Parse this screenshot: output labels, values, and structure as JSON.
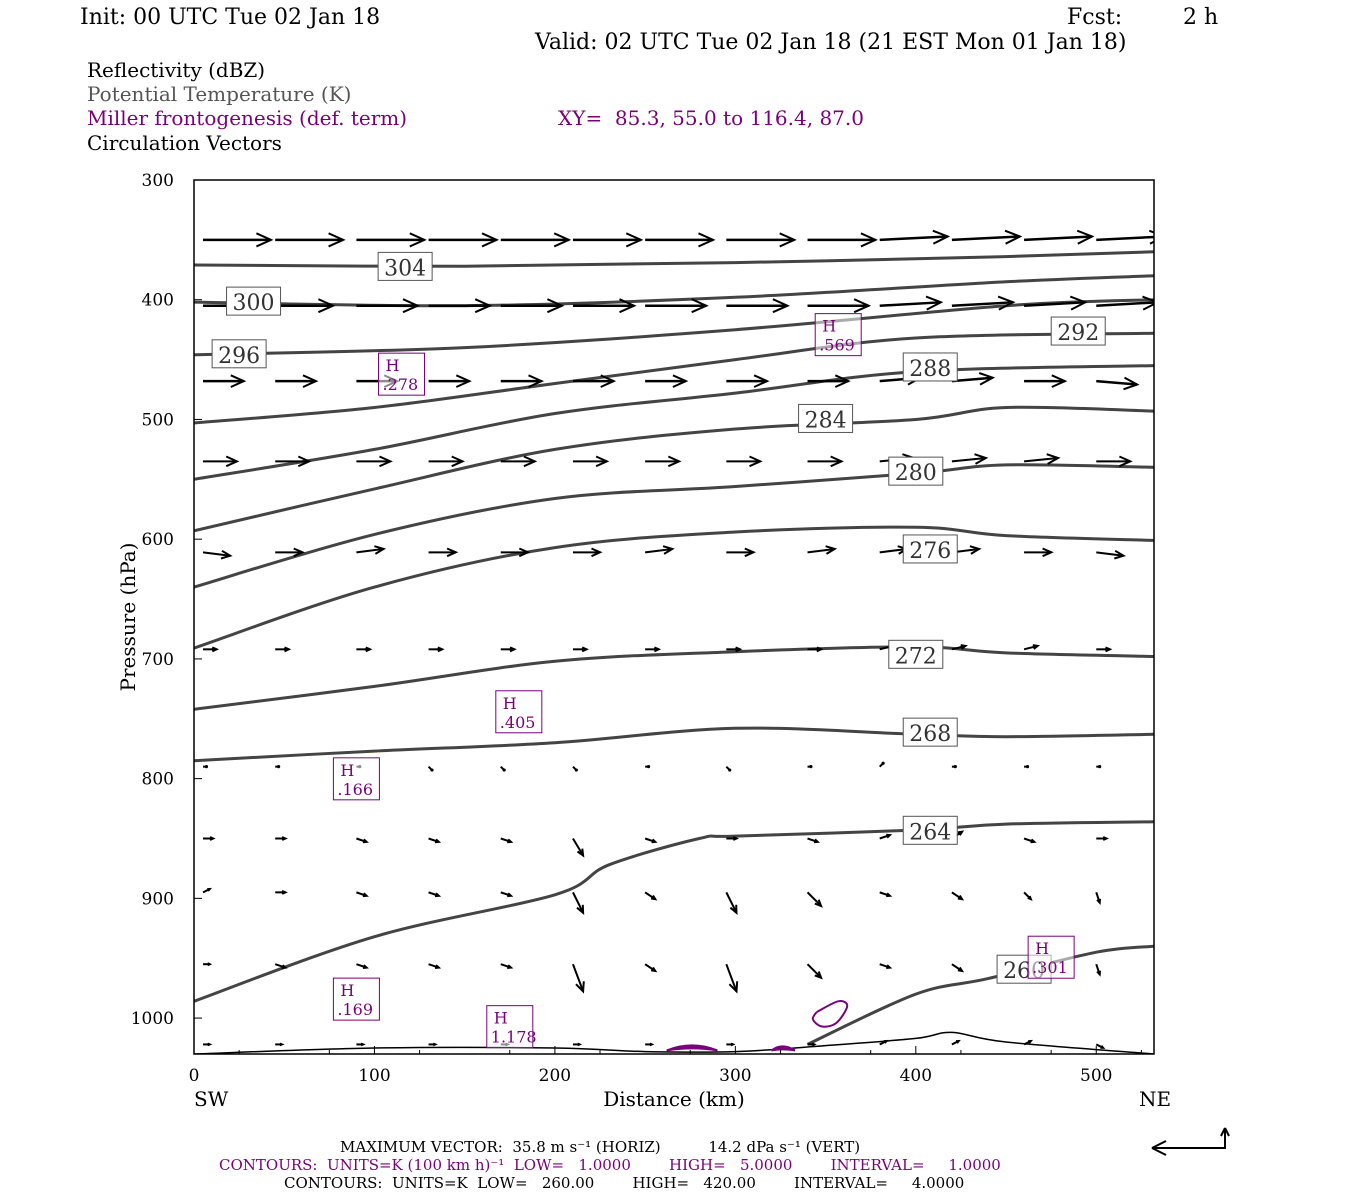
{
  "header": {
    "init": "Init: 00 UTC Tue 02 Jan 18",
    "fcst_label": "Fcst:",
    "fcst_value": "2 h",
    "valid": "Valid: 02 UTC Tue 02 Jan 18 (21 EST Mon 01 Jan 18)"
  },
  "fields": {
    "line1": "Reflectivity (dBZ)",
    "line2": "Potential Temperature (K)",
    "line3": "Miller frontogenesis (def. term)",
    "xy": "XY=  85.3, 55.0 to 116.4, 87.0",
    "line4": "Circulation Vectors"
  },
  "colors": {
    "theta": "#444444",
    "fronto": "#7a007a",
    "vectors": "#000000"
  },
  "chart_data": {
    "type": "line",
    "title": "",
    "xlabel": "Distance (km)",
    "ylabel": "Pressure (hPa)",
    "xlim": [
      0,
      532
    ],
    "ylim": [
      1030,
      300
    ],
    "y_scale": "linear, inverted",
    "x_ticks": [
      0,
      100,
      200,
      300,
      400,
      500
    ],
    "y_ticks": [
      300,
      400,
      500,
      600,
      700,
      800,
      900,
      1000
    ],
    "x_end_labels": {
      "left": "SW",
      "right": "NE"
    },
    "theta_isentropes": [
      {
        "label": "304",
        "x": [
          0,
          150,
          300,
          450,
          532
        ],
        "p": [
          371,
          372,
          369,
          364,
          360
        ],
        "label_at": [
          117,
          373
        ]
      },
      {
        "label": "300",
        "x": [
          0,
          150,
          300,
          450,
          532
        ],
        "p": [
          402,
          405,
          398,
          385,
          380
        ],
        "label_at": [
          33,
          402
        ]
      },
      {
        "label": "296",
        "x": [
          0,
          150,
          300,
          450,
          532
        ],
        "p": [
          446,
          440,
          425,
          405,
          400
        ],
        "label_at": [
          25,
          446
        ]
      },
      {
        "label": "292",
        "x": [
          0,
          100,
          200,
          300,
          400,
          532
        ],
        "p": [
          503,
          490,
          470,
          450,
          432,
          428
        ],
        "label_at": [
          490,
          427
        ]
      },
      {
        "label": "288",
        "x": [
          0,
          100,
          200,
          300,
          400,
          532
        ],
        "p": [
          550,
          525,
          495,
          478,
          460,
          455
        ],
        "label_at": [
          408,
          457
        ]
      },
      {
        "label": "284",
        "x": [
          0,
          100,
          200,
          300,
          400,
          450,
          532
        ],
        "p": [
          593,
          558,
          525,
          508,
          500,
          490,
          493
        ],
        "label_at": [
          350,
          500
        ]
      },
      {
        "label": "280",
        "x": [
          0,
          100,
          200,
          300,
          400,
          450,
          532
        ],
        "p": [
          640,
          596,
          566,
          556,
          545,
          538,
          540
        ],
        "label_at": [
          400,
          544
        ]
      },
      {
        "label": "276",
        "x": [
          0,
          100,
          200,
          300,
          400,
          450,
          532
        ],
        "p": [
          691,
          640,
          607,
          594,
          590,
          597,
          601
        ],
        "label_at": [
          408,
          609
        ]
      },
      {
        "label": "272",
        "x": [
          0,
          100,
          200,
          300,
          400,
          450,
          532
        ],
        "p": [
          742,
          723,
          702,
          694,
          690,
          695,
          698
        ],
        "label_at": [
          400,
          697
        ]
      },
      {
        "label": "268",
        "x": [
          0,
          100,
          200,
          300,
          400,
          450,
          532
        ],
        "p": [
          785,
          777,
          770,
          758,
          763,
          765,
          763
        ],
        "label_at": [
          408,
          762
        ]
      },
      {
        "label": "264",
        "x": [
          0,
          100,
          200,
          230,
          280,
          300,
          400,
          450,
          532
        ],
        "p": [
          986,
          932,
          897,
          872,
          850,
          848,
          843,
          838,
          836
        ],
        "label_at": [
          408,
          844
        ]
      },
      {
        "label": "260",
        "x": [
          340,
          400,
          440,
          500,
          532
        ],
        "p": [
          1022,
          980,
          967,
          945,
          940
        ],
        "label_at": [
          460,
          960
        ]
      }
    ],
    "ground_profile": {
      "x": [
        0,
        100,
        200,
        250,
        300,
        350,
        400,
        420,
        450,
        532
      ],
      "p": [
        1030,
        1025,
        1025,
        1028,
        1028,
        1023,
        1017,
        1012,
        1020,
        1030
      ]
    },
    "frontogenesis_maxima": [
      {
        "label": "H",
        "value": ".278",
        "x": 115,
        "p": 463
      },
      {
        "label": "H",
        "value": ".569",
        "x": 357,
        "p": 430
      },
      {
        "label": "H",
        "value": ".405",
        "x": 180,
        "p": 745
      },
      {
        "label": "H",
        "value": ".166",
        "x": 90,
        "p": 801
      },
      {
        "label": "H",
        "value": ".169",
        "x": 90,
        "p": 985
      },
      {
        "label": "H",
        "value": "1.178",
        "x": 175,
        "p": 1008
      },
      {
        "label": "H",
        "value": ".301",
        "x": 475,
        "p": 950
      }
    ],
    "circulation_vectors": {
      "x": [
        5,
        45,
        90,
        130,
        170,
        210,
        250,
        295,
        340,
        380,
        420,
        460,
        500
      ],
      "levels": [
        {
          "p": 350,
          "u": [
            1,
            1,
            1,
            1,
            1,
            1,
            1,
            1,
            1,
            1,
            1,
            1,
            1
          ],
          "w": [
            0,
            0,
            0,
            0,
            0,
            0,
            0,
            0,
            0,
            0.05,
            0.05,
            0.05,
            0.05
          ]
        },
        {
          "p": 405,
          "u": [
            0.85,
            0.85,
            0.9,
            0.9,
            0.9,
            0.9,
            0.9,
            0.9,
            0.9,
            0.9,
            0.9,
            0.9,
            0.9
          ],
          "w": [
            0,
            0,
            0,
            0,
            0,
            0,
            0,
            0,
            0,
            0.05,
            0.05,
            0.05,
            0.05
          ]
        },
        {
          "p": 468,
          "u": [
            0.6,
            0.6,
            0.6,
            0.6,
            0.6,
            0.6,
            0.6,
            0.6,
            0.6,
            0.6,
            0.6,
            0.6,
            0.6
          ],
          "w": [
            0,
            0,
            0,
            0,
            0,
            0,
            0,
            0,
            0,
            0.05,
            0.05,
            0,
            -0.05
          ]
        },
        {
          "p": 535,
          "u": [
            0.5,
            0.5,
            0.5,
            0.5,
            0.5,
            0.5,
            0.5,
            0.5,
            0.5,
            0.5,
            0.5,
            0.5,
            0.5
          ],
          "w": [
            0,
            0,
            0,
            0,
            0,
            0,
            0,
            0,
            0,
            0.05,
            0.05,
            0.05,
            0
          ]
        },
        {
          "p": 611,
          "u": [
            0.4,
            0.4,
            0.4,
            0.4,
            0.4,
            0.4,
            0.4,
            0.4,
            0.4,
            0.4,
            0.4,
            0.4,
            0.4
          ],
          "w": [
            -0.05,
            0,
            0.05,
            0,
            0,
            0,
            0.05,
            0,
            0.05,
            0.05,
            0.05,
            0,
            -0.05
          ]
        },
        {
          "p": 692,
          "u": [
            0.2,
            0.2,
            0.2,
            0.2,
            0.2,
            0.2,
            0.2,
            0.2,
            0.2,
            0.2,
            0.2,
            0.2,
            0.2
          ],
          "w": [
            0,
            0,
            0,
            0,
            0,
            0,
            0,
            0,
            0,
            0.05,
            0.05,
            0.05,
            0
          ]
        },
        {
          "p": 790,
          "u": [
            0.05,
            0.05,
            0.05,
            0.05,
            0.05,
            0.05,
            0.05,
            0.05,
            0.05,
            0.05,
            0.05,
            0.05,
            0.05
          ],
          "w": [
            0,
            0,
            0,
            -0.05,
            -0.05,
            -0.05,
            0,
            -0.05,
            0,
            0.05,
            0,
            0,
            0
          ]
        },
        {
          "p": 850,
          "u": [
            0.15,
            0.15,
            0.15,
            0.15,
            0.15,
            0.15,
            0.15,
            0.15,
            0.15,
            0.15,
            0.15,
            0.15,
            0.15
          ],
          "w": [
            0,
            0,
            -0.05,
            -0.05,
            -0.05,
            -0.25,
            -0.05,
            0,
            -0.05,
            0.05,
            0.1,
            -0.05,
            0
          ]
        },
        {
          "p": 895,
          "u": [
            0.1,
            0.15,
            0.15,
            0.15,
            0.15,
            0.15,
            0.15,
            0.15,
            0.2,
            0.15,
            0.15,
            0.1,
            0.05
          ],
          "w": [
            0.05,
            0,
            -0.05,
            -0.05,
            -0.05,
            -0.3,
            -0.1,
            -0.3,
            -0.2,
            -0.05,
            -0.1,
            -0.1,
            -0.15
          ]
        },
        {
          "p": 955,
          "u": [
            0.1,
            0.15,
            0.15,
            0.15,
            0.15,
            0.15,
            0.15,
            0.15,
            0.2,
            0.15,
            0.15,
            0.1,
            0.05
          ],
          "w": [
            0,
            -0.05,
            -0.05,
            -0.05,
            -0.05,
            -0.4,
            -0.1,
            -0.4,
            -0.2,
            -0.05,
            -0.1,
            -0.15,
            -0.15
          ]
        },
        {
          "p": 1022,
          "u": [
            0.1,
            0.1,
            0.1,
            0.1,
            0.1,
            0.1,
            0.1,
            0.1,
            0.1,
            0.1,
            0.1,
            0.1,
            0.1
          ],
          "w": [
            0,
            0,
            0,
            0,
            0,
            0,
            0,
            0,
            0,
            0.05,
            0.05,
            0.05,
            -0.05
          ]
        }
      ]
    }
  },
  "footer": {
    "max_vector": "MAXIMUM VECTOR:  35.8 m s⁻¹ (HORIZ)          14.2 dPa s⁻¹ (VERT)",
    "contours1": "CONTOURS:  UNITS=K (100 km h)⁻¹  LOW=   1.0000        HIGH=   5.0000        INTERVAL=     1.0000",
    "contours2": "CONTOURS:  UNITS=K  LOW=   260.00        HIGH=   420.00        INTERVAL=     4.0000"
  }
}
